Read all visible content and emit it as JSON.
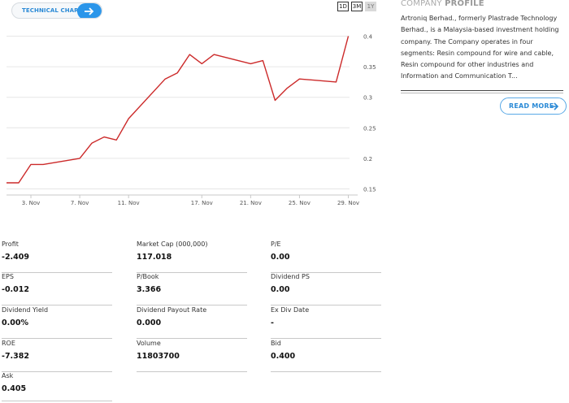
{
  "technical_chart": {
    "label": "TECHNICAL CHART",
    "icon": "arrow-right-icon"
  },
  "ranges": [
    {
      "label": "1D",
      "active": false
    },
    {
      "label": "3M",
      "active": false
    },
    {
      "label": "1Y",
      "active": true
    }
  ],
  "chart_data": {
    "type": "line",
    "color": "#cc2a2a",
    "x_ticks": [
      "3. Nov",
      "7. Nov",
      "11. Nov",
      "17. Nov",
      "21. Nov",
      "25. Nov",
      "29. Nov"
    ],
    "y_ticks": [
      "0.4",
      "0.35",
      "0.3",
      "0.25",
      "0.2",
      "0.15"
    ],
    "ylim": [
      0.14,
      0.43
    ],
    "series": [
      {
        "points": [
          [
            "1 Nov",
            0.16
          ],
          [
            "2 Nov",
            0.16
          ],
          [
            "3 Nov",
            0.19
          ],
          [
            "4 Nov",
            0.19
          ],
          [
            "7 Nov",
            0.2
          ],
          [
            "8 Nov",
            0.225
          ],
          [
            "9 Nov",
            0.235
          ],
          [
            "10 Nov",
            0.23
          ],
          [
            "11 Nov",
            0.265
          ],
          [
            "14 Nov",
            0.33
          ],
          [
            "15 Nov",
            0.34
          ],
          [
            "16 Nov",
            0.37
          ],
          [
            "17 Nov",
            0.355
          ],
          [
            "18 Nov",
            0.37
          ],
          [
            "21 Nov",
            0.355
          ],
          [
            "22 Nov",
            0.36
          ],
          [
            "23 Nov",
            0.295
          ],
          [
            "24 Nov",
            0.315
          ],
          [
            "25 Nov",
            0.33
          ],
          [
            "28 Nov",
            0.325
          ],
          [
            "29 Nov",
            0.4
          ]
        ]
      }
    ]
  },
  "company_profile": {
    "title_light": "COMPANY",
    "title_bold": "PROFILE",
    "description": "Artroniq Berhad., formerly Plastrade Technology Berhad., is a Malaysia-based investment holding company. The Company operates in four segments: Resin compound for wire and cable, Resin compound for other industries and Information and Communication T...",
    "read_more": "READ MORE"
  },
  "stats": {
    "profit": {
      "label": "Profit",
      "value": "-2.409"
    },
    "market_cap": {
      "label": "Market Cap   (000,000)",
      "value": "117.018"
    },
    "pe": {
      "label": "P/E",
      "value": "0.00"
    },
    "eps": {
      "label": "EPS",
      "value": "-0.012"
    },
    "pbook": {
      "label": "P/Book",
      "value": "3.366"
    },
    "dividend_ps": {
      "label": "Dividend PS",
      "value": "0.00"
    },
    "dividend_yield": {
      "label": "Dividend Yield",
      "value": "0.00%"
    },
    "dividend_payout": {
      "label": "Dividend Payout Rate",
      "value": "0.000"
    },
    "ex_div_date": {
      "label": "Ex Div Date",
      "value": "-"
    },
    "roe": {
      "label": "ROE",
      "value": "-7.382"
    },
    "volume": {
      "label": "Volume",
      "value": "11803700"
    },
    "bid": {
      "label": "Bid",
      "value": "0.400"
    },
    "ask": {
      "label": "Ask",
      "value": "0.405"
    }
  }
}
